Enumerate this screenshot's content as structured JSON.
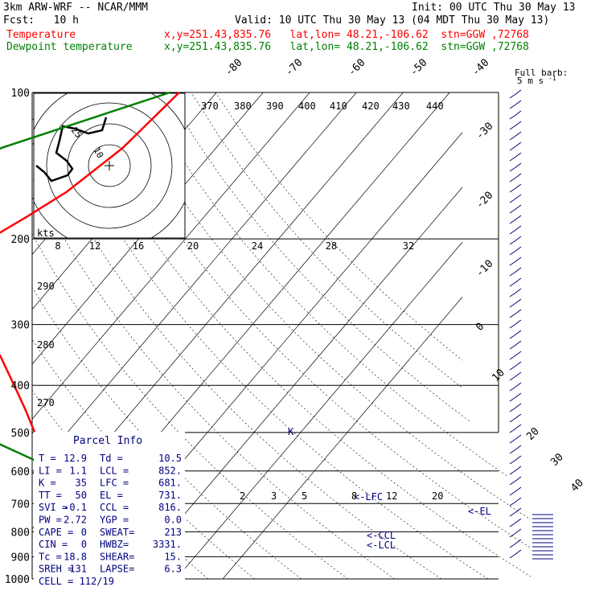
{
  "header": {
    "title": "3km ARW-WRF -- NCAR/MMM",
    "init": "Init: 00 UTC Thu 30 May 13",
    "fcst": "Fcst:   10 h",
    "valid": "Valid: 10 UTC Thu 30 May 13 (04 MDT Thu 30 May 13)",
    "temp_label": "Temperature",
    "temp_info": "x,y=251.43,835.76   lat,lon= 48.21,-106.62  stn=GGW ,72768",
    "dew_label": "Dewpoint temperature",
    "dew_info": "x,y=251.43,835.76   lat,lon= 48.21,-106.62  stn=GGW ,72768"
  },
  "colors": {
    "temperature": "#ff0000",
    "dewpoint": "#008000",
    "annotation": "#000080",
    "grid": "#000000"
  },
  "chart_data": {
    "type": "line",
    "y_axis": "pressure (hPa), log scale",
    "pressure_labels": [
      "100",
      "200",
      "300",
      "400",
      "500",
      "600",
      "700",
      "800",
      "900",
      "1000"
    ],
    "temperature_ticks": [
      "-80",
      "-70",
      "-60",
      "-50",
      "-40",
      "-30",
      "-20",
      "-10",
      "0",
      "10",
      "20",
      "30",
      "40"
    ],
    "theta_labels": [
      "370",
      "380",
      "390",
      "400",
      "410",
      "420",
      "430",
      "440",
      "290",
      "280",
      "270"
    ],
    "mixing_ratio_labels": [
      "2",
      "3",
      "5",
      "8",
      "12",
      "20"
    ],
    "hodograph": {
      "units": "kts",
      "ring_labels": [
        "8",
        "12",
        "16",
        "20",
        "24",
        "28",
        "32"
      ]
    },
    "hodograph_marks": [
      "25",
      "10"
    ],
    "wind_legend": {
      "title": "Full barb:",
      "value": "5 m s",
      "superscript": "-1"
    },
    "levels": [
      "LFC",
      "CCL",
      "LCL",
      "EL"
    ],
    "level_marks": [
      "<-LFC",
      "<-CCL",
      "<-LCL",
      "<-EL",
      "K"
    ],
    "series": [
      {
        "name": "Temperature",
        "points": [
          [
            100,
            -48
          ],
          [
            130,
            -50
          ],
          [
            160,
            -54
          ],
          [
            180,
            -58
          ],
          [
            200,
            -62
          ],
          [
            250,
            -58
          ],
          [
            300,
            -48
          ],
          [
            350,
            -38
          ],
          [
            400,
            -30
          ],
          [
            450,
            -23
          ],
          [
            500,
            -17
          ],
          [
            550,
            -10
          ],
          [
            600,
            -4
          ],
          [
            650,
            1
          ],
          [
            700,
            5
          ],
          [
            750,
            9
          ],
          [
            800,
            12
          ],
          [
            850,
            13
          ],
          [
            870,
            16
          ],
          [
            890,
            13
          ],
          [
            895,
            12.9
          ]
        ]
      },
      {
        "name": "Dewpoint temperature",
        "points": [
          [
            100,
            -50
          ],
          [
            130,
            -76
          ],
          [
            150,
            -82
          ],
          [
            180,
            -77
          ],
          [
            200,
            -70
          ],
          [
            250,
            -64
          ],
          [
            300,
            -57
          ],
          [
            320,
            -52
          ],
          [
            370,
            -38
          ],
          [
            430,
            -34
          ],
          [
            460,
            -38
          ],
          [
            500,
            -30
          ],
          [
            570,
            -12
          ],
          [
            620,
            -6
          ],
          [
            700,
            1
          ],
          [
            800,
            7
          ],
          [
            860,
            9
          ],
          [
            900,
            10.5
          ]
        ]
      }
    ],
    "parcel_info": {
      "title": "Parcel Info",
      "rows": [
        [
          "T  =",
          "12.9",
          "Td =",
          "10.5"
        ],
        [
          "LI =",
          "1.1",
          "LCL =",
          "852."
        ],
        [
          "K  =",
          "35",
          "LFC =",
          "681."
        ],
        [
          "TT =",
          "50",
          "EL  =",
          "731."
        ],
        [
          "SVI =",
          "-0.1",
          "CCL =",
          "816."
        ],
        [
          "PW =",
          "2.72",
          "YGP =",
          "0.0"
        ],
        [
          "CAPE =",
          "0",
          "SWEAT=",
          "213"
        ],
        [
          "CIN =",
          "0",
          "HWBZ=",
          "3331."
        ],
        [
          "Tc =",
          "18.8",
          "SHEAR=",
          "15."
        ],
        [
          "SREH =",
          "131",
          "LAPSE=",
          "6.3"
        ],
        [
          "CELL = 112/19",
          "",
          "",
          ""
        ]
      ]
    }
  }
}
